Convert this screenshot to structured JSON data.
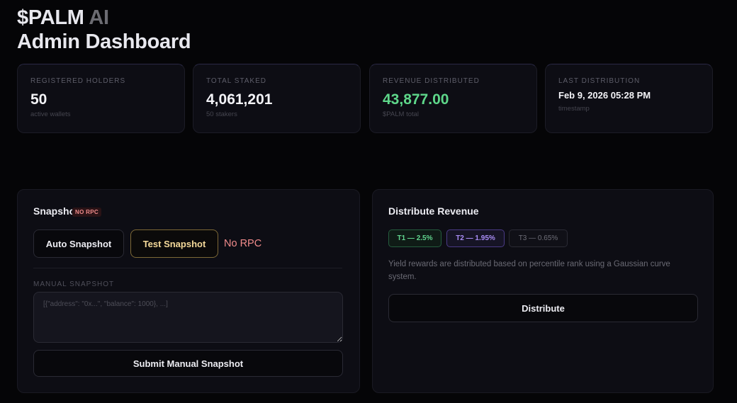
{
  "header": {
    "brand": "$PALM",
    "brand_suffix": "AI",
    "subtitle": "Admin Dashboard"
  },
  "stats": [
    {
      "label": "REGISTERED HOLDERS",
      "value": "50",
      "sub": "active wallets"
    },
    {
      "label": "TOTAL STAKED",
      "value": "4,061,201",
      "sub": "50 stakers"
    },
    {
      "label": "REVENUE DISTRIBUTED",
      "value": "43,877.00",
      "sub": "$PALM total"
    },
    {
      "label": "LAST DISTRIBUTION",
      "value": "Feb 9, 2026 05:28 PM",
      "sub": "timestamp"
    }
  ],
  "snapshot": {
    "title": "Snapshot",
    "badge": "NO RPC",
    "auto_label": "Auto Snapshot",
    "test_label": "Test Snapshot",
    "status_text": "No RPC",
    "manual_label": "MANUAL SNAPSHOT",
    "manual_placeholder": "[{\"address\": \"0x...\", \"balance\": 1000}, ...]",
    "submit_label": "Submit Manual Snapshot"
  },
  "distribute": {
    "title": "Distribute Revenue",
    "tiers": [
      "T1 — 2.5%",
      "T2 — 1.95%",
      "T3 — 0.65%"
    ],
    "description": "Yield rewards are distributed based on percentile rank using a Gaussian curve system.",
    "button_label": "Distribute"
  },
  "colors": {
    "background": "#050507",
    "accent_green": "#5ed78a",
    "accent_purple": "#a98cf5",
    "warning_red": "#f08b8b",
    "gold": "#f4d99a"
  }
}
